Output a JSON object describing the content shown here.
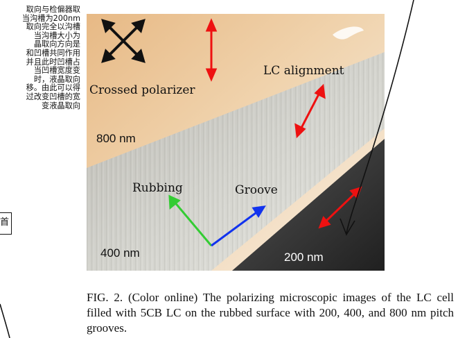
{
  "margin_note": {
    "lines": [
      "取向与检偏器取",
      "当沟槽为200nm",
      "取向完全以沟槽",
      "当沟槽大小为",
      "晶取向方向是",
      "和凹槽共同作用",
      "并且此时凹槽占",
      "当凹槽宽度变",
      "时，液晶取向",
      "移。由此可以得",
      "过改变凹槽的宽",
      "变液晶取向"
    ],
    "box_text": "首"
  },
  "figure": {
    "labels": {
      "crossed_polarizer": "Crossed polarizer",
      "lc_alignment": "LC alignment",
      "region_800": "800 nm",
      "rubbing": "Rubbing",
      "groove": "Groove",
      "region_400": "400 nm",
      "region_200": "200 nm"
    },
    "colors": {
      "arrow_red": "#ee1111",
      "rubbing_green": "#33cc33",
      "groove_blue": "#1133ee",
      "cross_black": "#111111"
    },
    "icons": [
      "crossed-polarizer-icon",
      "polarizer-arrow-icon",
      "lc-alignment-arrow-icon",
      "rubbing-arrow-icon",
      "groove-arrow-icon"
    ]
  },
  "caption": {
    "text": "FIG. 2. (Color online) The polarizing microscopic images of the LC cell filled with 5CB LC on the rubbed surface with 200, 400, and 800 nm pitch grooves."
  }
}
